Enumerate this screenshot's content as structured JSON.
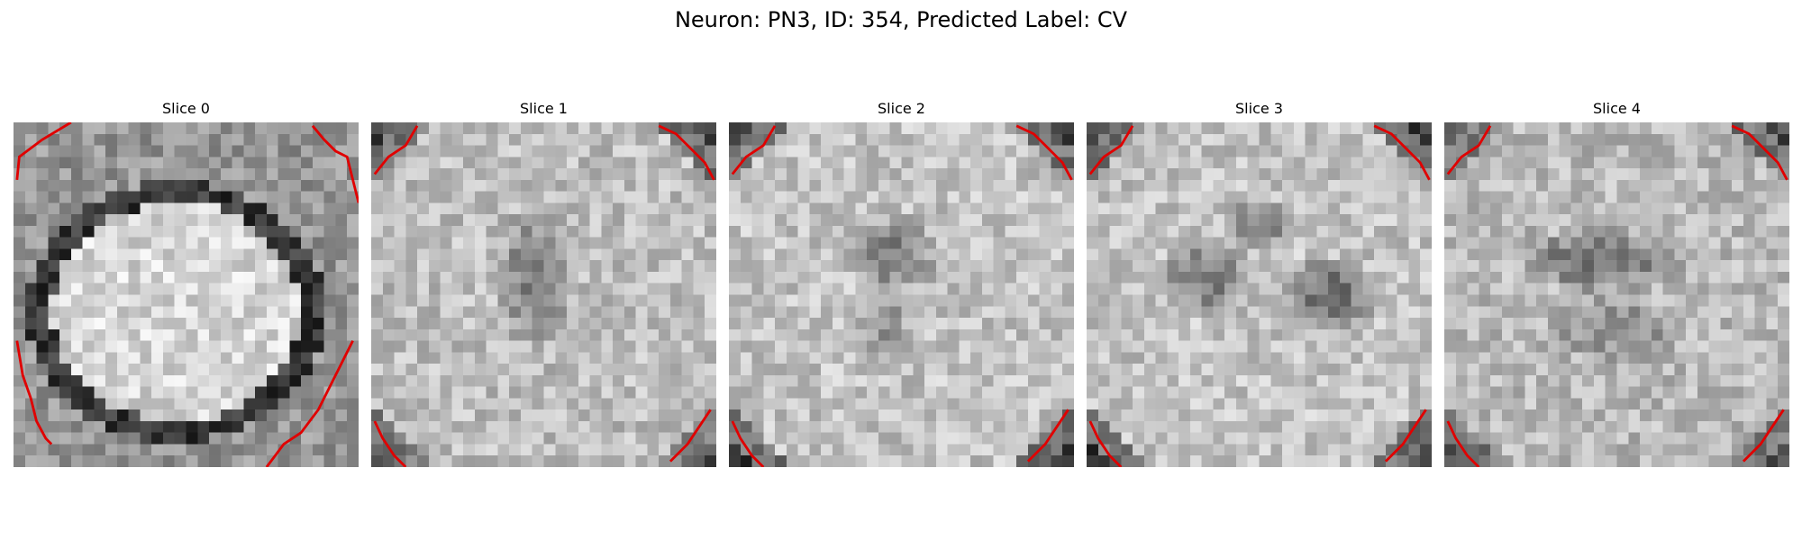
{
  "figure": {
    "title": "Neuron: PN3, ID: 354, Predicted Label: CV"
  },
  "colormap": "grayscale",
  "contour_color": "#e00000",
  "slices": [
    {
      "label": "Slice 0"
    },
    {
      "label": "Slice 1"
    },
    {
      "label": "Slice 2"
    },
    {
      "label": "Slice 3"
    },
    {
      "label": "Slice 4"
    }
  ]
}
